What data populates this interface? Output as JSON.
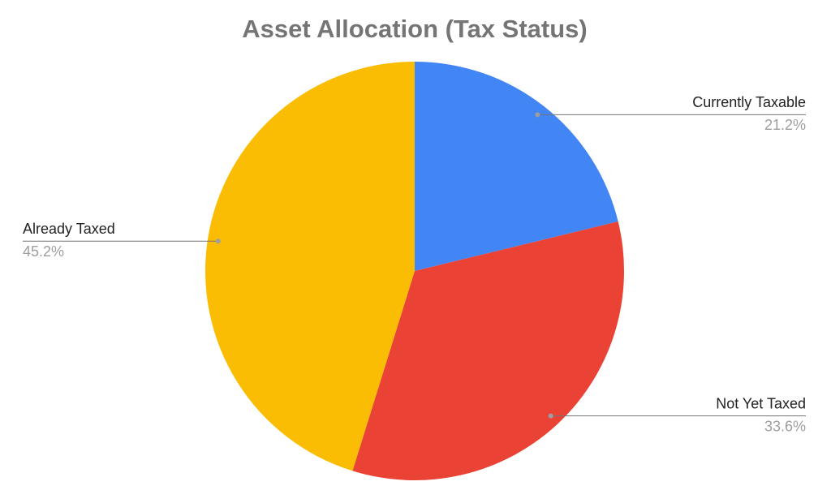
{
  "chart_data": {
    "type": "pie",
    "title": "Asset Allocation (Tax Status)",
    "categories": [
      "Currently Taxable",
      "Not Yet Taxed",
      "Already Taxed"
    ],
    "values": [
      21.2,
      33.6,
      45.2
    ],
    "value_labels": [
      "21.2%",
      "33.6%",
      "45.2%"
    ],
    "colors": [
      "#4285f4",
      "#ea4335",
      "#fbbc04"
    ]
  }
}
